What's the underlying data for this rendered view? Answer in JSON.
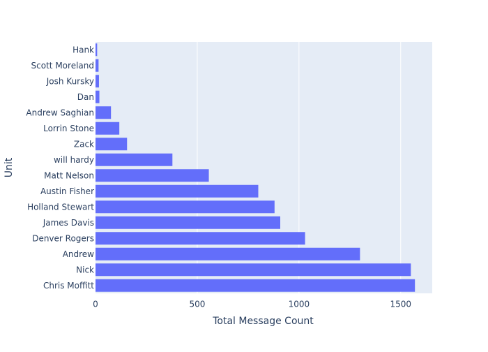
{
  "chart_data": {
    "type": "bar",
    "orientation": "horizontal",
    "categories": [
      "Hank",
      "Scott Moreland",
      "Josh Kursky",
      "Dan",
      "Andrew Saghian",
      "Lorrin Stone",
      "Zack",
      "will hardy",
      "Matt Nelson",
      "Austin Fisher",
      "Holland Stewart",
      "James Davis",
      "Denver Rogers",
      "Andrew",
      "Nick",
      "Chris Moffitt"
    ],
    "values": [
      8,
      15,
      17,
      19,
      76,
      117,
      155,
      378,
      557,
      800,
      880,
      908,
      1030,
      1300,
      1550,
      1570
    ],
    "title": "",
    "xlabel": "Total Message Count",
    "ylabel": "Unit",
    "xlim": [
      0,
      1655
    ],
    "x_ticks": [
      0,
      500,
      1000,
      1500
    ],
    "x_tick_labels": [
      "0",
      "500",
      "1000",
      "1500"
    ],
    "grid": true,
    "legend": "none",
    "colors": {
      "bar": "#636efa",
      "plot_bg": "#e5ecf6",
      "grid": "#ffffff",
      "text": "#2a3f5f"
    }
  }
}
